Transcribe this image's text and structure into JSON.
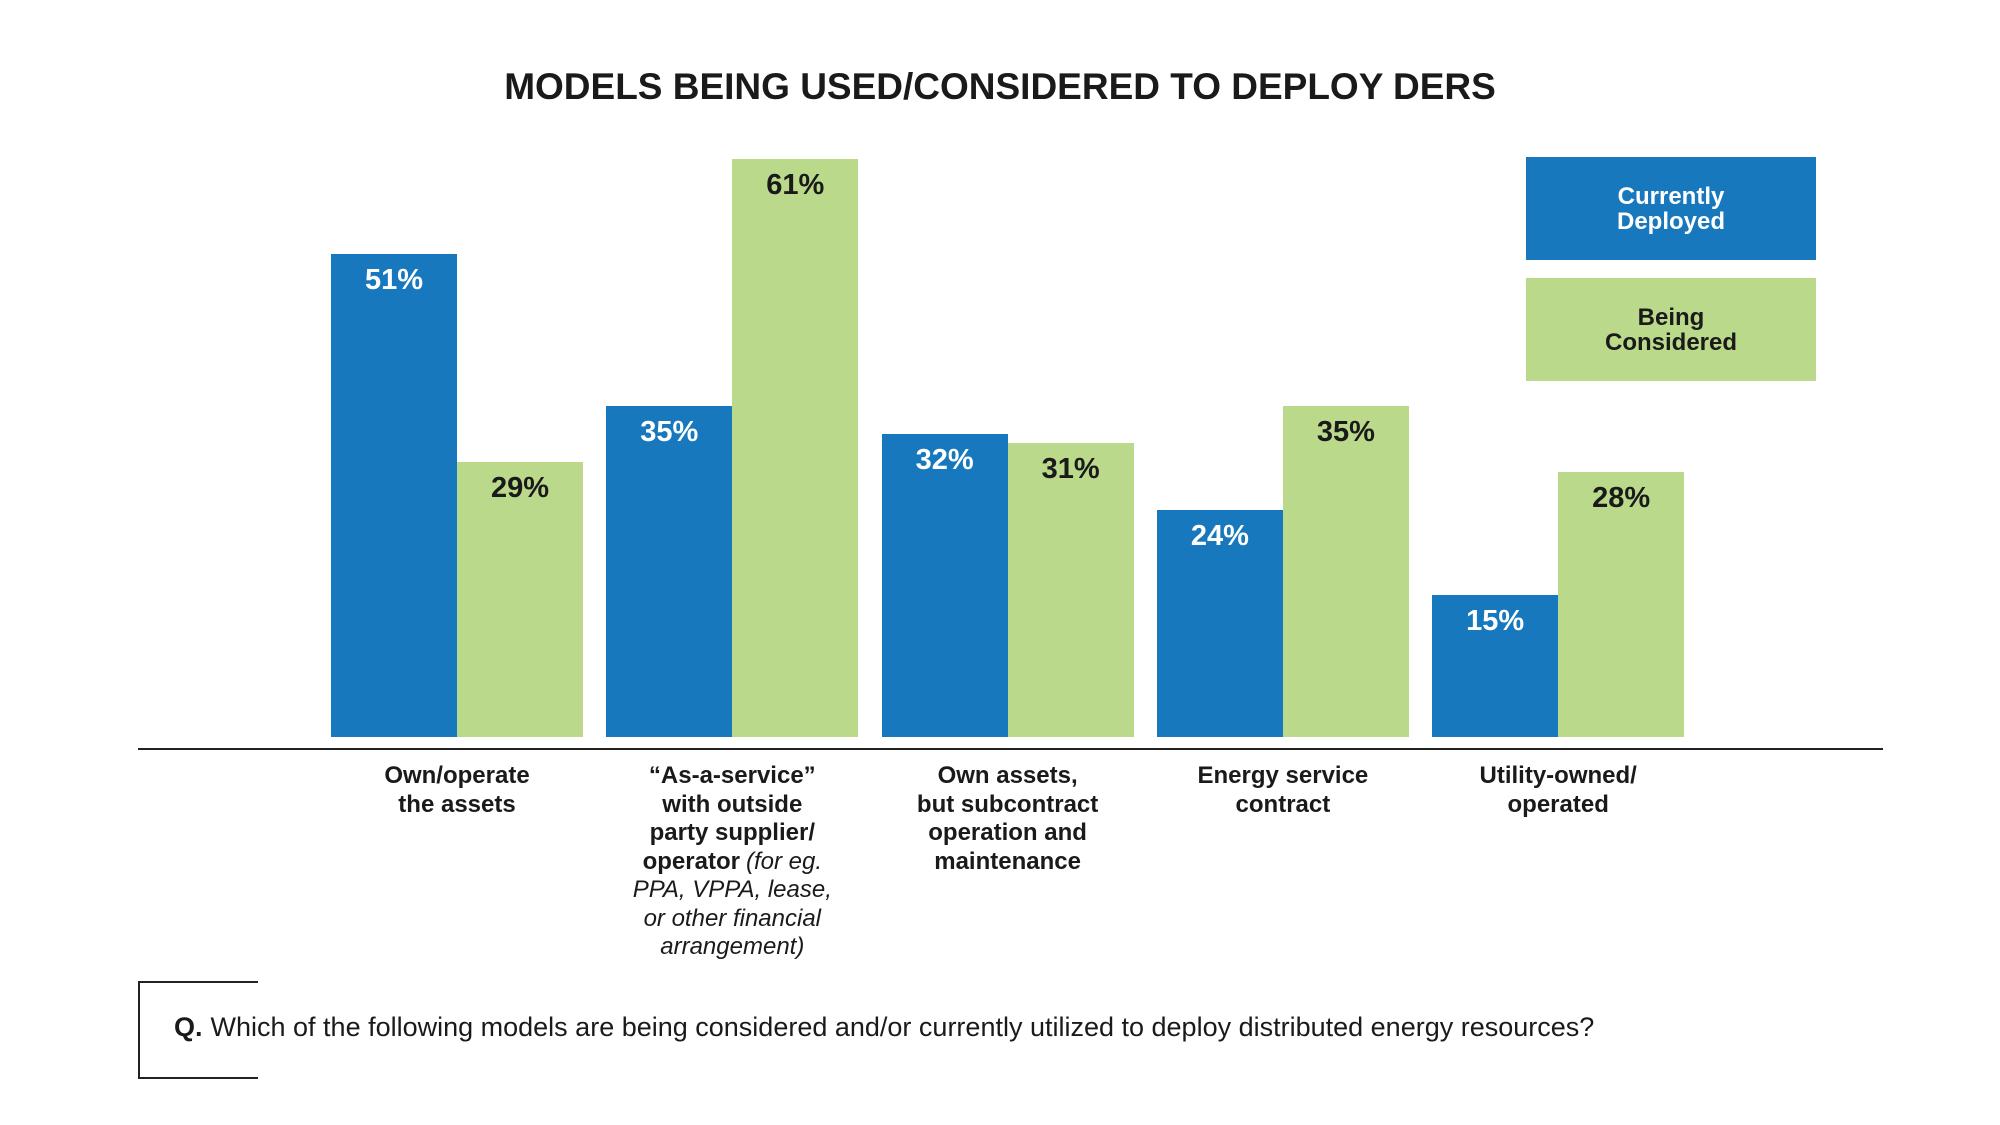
{
  "chart_data": {
    "type": "bar",
    "title": "MODELS BEING USED/CONSIDERED TO DEPLOY DERS",
    "categories": [
      "Own/operate\nthe assets",
      "“As-a-service”\nwith outside\nparty supplier/\noperator",
      "Own assets,\nbut subcontract\noperation and\nmaintenance",
      "Energy service\ncontract",
      "Utility-owned/\noperated"
    ],
    "category_notes": {
      "1": "(for eg.\nPPA, VPPA, lease,\nor other financial\narrangement)"
    },
    "series": [
      {
        "name": "Currently\nDeployed",
        "color": "#1878bd",
        "label_color": "#ffffff",
        "values": [
          51,
          35,
          32,
          24,
          15
        ],
        "value_labels": [
          "51%",
          "35%",
          "32%",
          "24%",
          "15%"
        ]
      },
      {
        "name": "Being\nConsidered",
        "color": "#bad98b",
        "label_color": "#1a1a1a",
        "values": [
          29,
          61,
          31,
          35,
          28
        ],
        "value_labels": [
          "29%",
          "61%",
          "31%",
          "35%",
          "28%"
        ]
      }
    ],
    "legend": "top-right",
    "question_label": "Q.",
    "question": "Which of the following models are being considered and/or currently utilized to deploy distributed energy resources?"
  }
}
